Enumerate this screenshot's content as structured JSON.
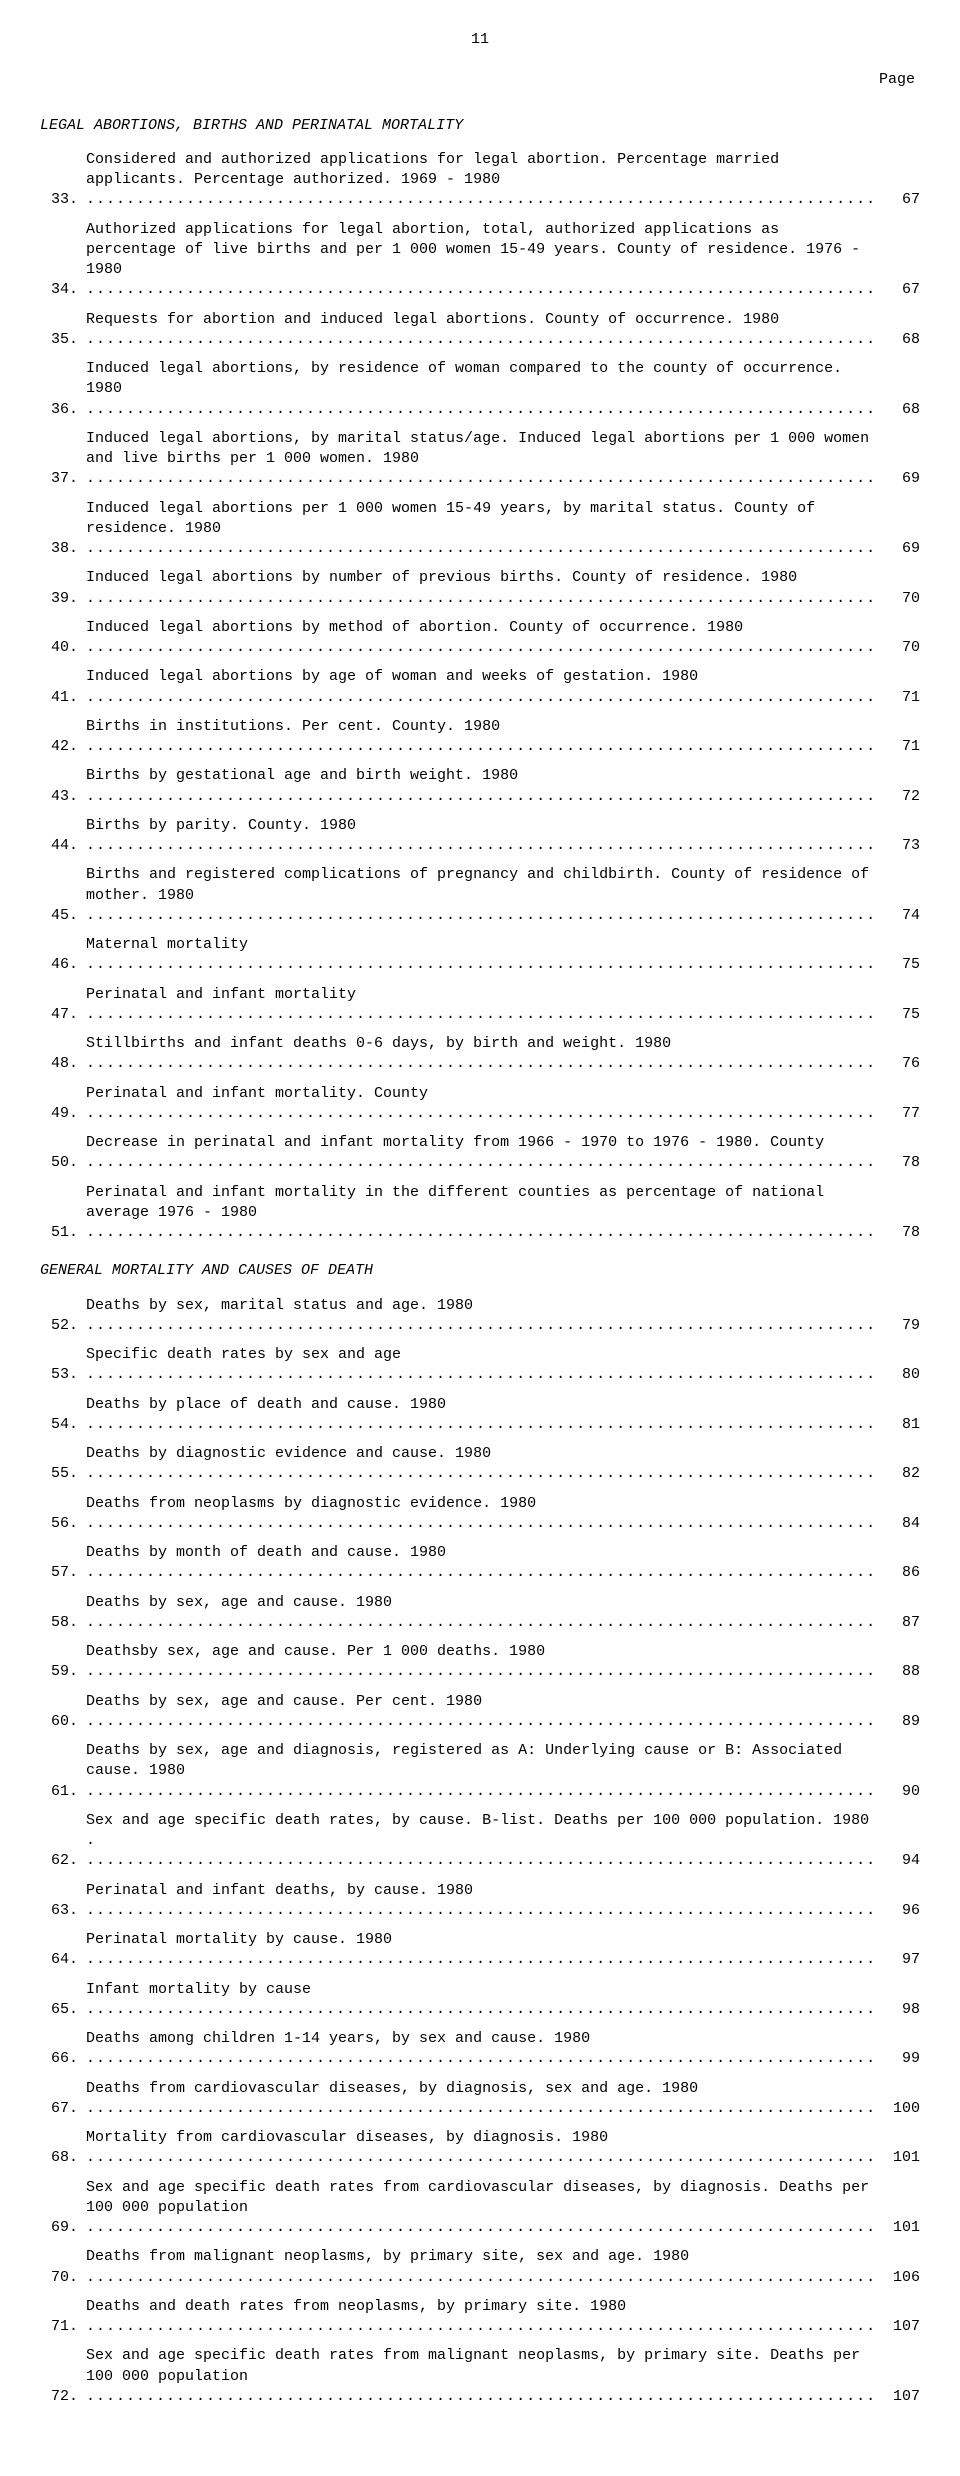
{
  "page_number_top": "11",
  "page_label": "Page",
  "sections": [
    {
      "heading": "LEGAL ABORTIONS, BIRTHS AND PERINATAL MORTALITY",
      "entries": [
        {
          "num": "33.",
          "text": "Considered and authorized applications for legal abortion.  Percentage married applicants. Percentage authorized.  1969 - 1980",
          "page": "67"
        },
        {
          "num": "34.",
          "text": "Authorized applications for legal abortion, total, authorized applications as percentage of live births and per 1 000 women 15-49 years.   County of residence.  1976 - 1980",
          "page": "67"
        },
        {
          "num": "35.",
          "text": "Requests for abortion and induced legal abortions.  County of occurrence.  1980",
          "page": "68"
        },
        {
          "num": "36.",
          "text": "Induced legal abortions, by residence of woman compared to the county of occurrence. 1980",
          "page": "68"
        },
        {
          "num": "37.",
          "text": "Induced legal abortions, by marital status/age.  Induced legal abortions per 1 000 women and live births per 1 000 women.  1980",
          "page": "69"
        },
        {
          "num": "38.",
          "text": "Induced legal abortions per 1 000 women 15-49 years, by marital status.  County of residence.  1980",
          "page": "69"
        },
        {
          "num": "39.",
          "text": "Induced legal abortions by number of previous births.  County of residence.  1980",
          "page": "70"
        },
        {
          "num": "40.",
          "text": "Induced legal abortions by method of abortion.  County of occurrence.  1980",
          "page": "70"
        },
        {
          "num": "41.",
          "text": "Induced legal abortions by age of woman and weeks of gestation.  1980",
          "page": "71"
        },
        {
          "num": "42.",
          "text": "Births in institutions.  Per cent.  County.  1980",
          "page": "71"
        },
        {
          "num": "43.",
          "text": "Births by gestational age and birth weight.  1980",
          "page": "72"
        },
        {
          "num": "44.",
          "text": "Births by parity.  County.  1980",
          "page": "73"
        },
        {
          "num": "45.",
          "text": "Births and registered complications of pregnancy and childbirth.  County of residence of mother.  1980",
          "page": "74"
        },
        {
          "num": "46.",
          "text": "Maternal mortality",
          "page": "75"
        },
        {
          "num": "47.",
          "text": "Perinatal and infant mortality",
          "page": "75"
        },
        {
          "num": "48.",
          "text": "Stillbirths and infant deaths 0-6 days, by birth and weight.  1980",
          "page": "76"
        },
        {
          "num": "49.",
          "text": "Perinatal and infant mortality.  County",
          "page": "77"
        },
        {
          "num": "50.",
          "text": "Decrease in perinatal and infant mortality from 1966 - 1970 to 1976 - 1980.  County",
          "page": "78"
        },
        {
          "num": "51.",
          "text": "Perinatal and infant mortality in the different counties as percentage of national average 1976 - 1980",
          "page": "78"
        }
      ]
    },
    {
      "heading": "GENERAL MORTALITY AND CAUSES OF DEATH",
      "entries": [
        {
          "num": "52.",
          "text": "Deaths by sex, marital status and age.  1980",
          "page": "79"
        },
        {
          "num": "53.",
          "text": "Specific death rates by sex and age",
          "page": "80"
        },
        {
          "num": "54.",
          "text": "Deaths by place of death and cause.  1980",
          "page": "81"
        },
        {
          "num": "55.",
          "text": "Deaths by diagnostic evidence and cause.  1980",
          "page": "82"
        },
        {
          "num": "56.",
          "text": "Deaths from neoplasms by diagnostic evidence.  1980",
          "page": "84"
        },
        {
          "num": "57.",
          "text": "Deaths by month of death and cause.  1980",
          "page": "86"
        },
        {
          "num": "58.",
          "text": "Deaths by sex, age and cause.  1980",
          "page": "87"
        },
        {
          "num": "59.",
          "text": "Deathsby sex, age and cause.  Per 1 000 deaths.  1980",
          "page": "88"
        },
        {
          "num": "60.",
          "text": "Deaths by sex, age and cause.  Per cent.  1980",
          "page": "89"
        },
        {
          "num": "61.",
          "text": "Deaths by sex, age and diagnosis, registered as A:  Underlying cause or B:  Associated cause. 1980",
          "page": "90"
        },
        {
          "num": "62.",
          "text": "Sex and age specific death rates, by cause.  B-list.  Deaths per 100 000 population.  1980 .",
          "page": "94"
        },
        {
          "num": "63.",
          "text": "Perinatal and infant deaths, by cause.  1980",
          "page": "96"
        },
        {
          "num": "64.",
          "text": "Perinatal mortality by cause.  1980",
          "page": "97"
        },
        {
          "num": "65.",
          "text": "Infant mortality by cause",
          "page": "98"
        },
        {
          "num": "66.",
          "text": "Deaths among children 1-14 years, by sex and cause.  1980",
          "page": "99"
        },
        {
          "num": "67.",
          "text": "Deaths from cardiovascular diseases, by diagnosis, sex and age.  1980",
          "page": "100"
        },
        {
          "num": "68.",
          "text": "Mortality from cardiovascular diseases, by diagnosis.  1980",
          "page": "101"
        },
        {
          "num": "69.",
          "text": "Sex and age specific death rates from cardiovascular diseases, by diagnosis.  Deaths per 100 000 population",
          "page": "101"
        },
        {
          "num": "70.",
          "text": "Deaths from malignant neoplasms, by primary site, sex and age.  1980",
          "page": "106"
        },
        {
          "num": "71.",
          "text": "Deaths and death rates from neoplasms, by primary site.  1980",
          "page": "107"
        },
        {
          "num": "72.",
          "text": "Sex and age specific death rates from malignant neoplasms, by primary site.  Deaths per 100 000 population",
          "page": "107"
        }
      ]
    }
  ]
}
